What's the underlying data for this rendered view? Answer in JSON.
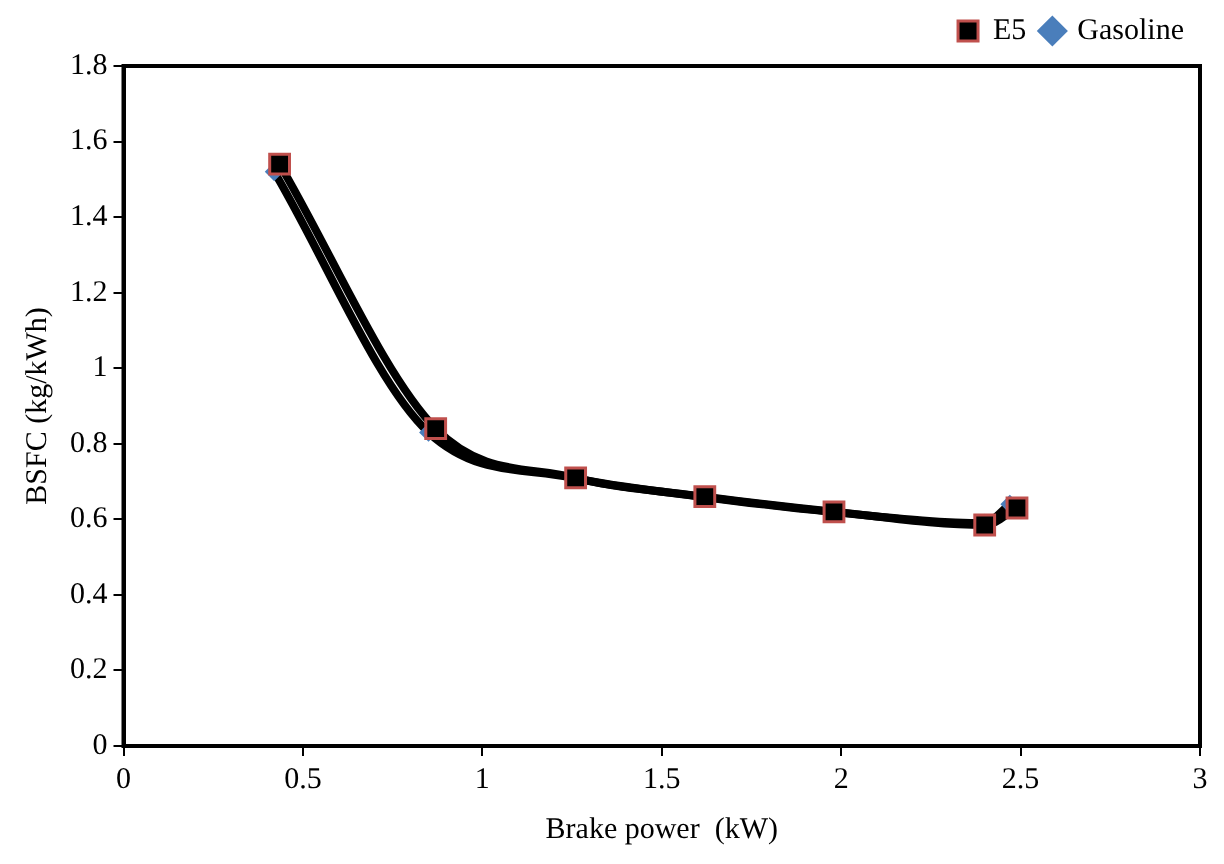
{
  "chart_data": {
    "type": "line",
    "xlabel": "Brake power  (kW)",
    "ylabel": "BSFC (kg/kWh)",
    "xlim": [
      0,
      3
    ],
    "xticks": [
      0,
      0.5,
      1,
      1.5,
      2,
      2.5,
      3
    ],
    "ylim": [
      0,
      1.8
    ],
    "yticks": [
      0,
      0.2,
      0.4,
      0.6,
      0.8,
      1,
      1.2,
      1.4,
      1.6,
      1.8
    ],
    "series": [
      {
        "name": "Gasoline",
        "color": "#4a7ebb",
        "marker": "diamond",
        "x": [
          0.42,
          0.85,
          1.25,
          1.61,
          1.97,
          2.4,
          2.47
        ],
        "values": [
          1.52,
          0.83,
          0.71,
          0.66,
          0.62,
          0.59,
          0.64
        ]
      },
      {
        "name": "E5",
        "color": "#000000",
        "marker": "square",
        "x": [
          0.435,
          0.87,
          1.26,
          1.62,
          1.98,
          2.4,
          2.49
        ],
        "values": [
          1.54,
          0.84,
          0.71,
          0.66,
          0.62,
          0.585,
          0.63
        ]
      }
    ],
    "grid": false,
    "legend": "top right",
    "line_style": "solid"
  }
}
